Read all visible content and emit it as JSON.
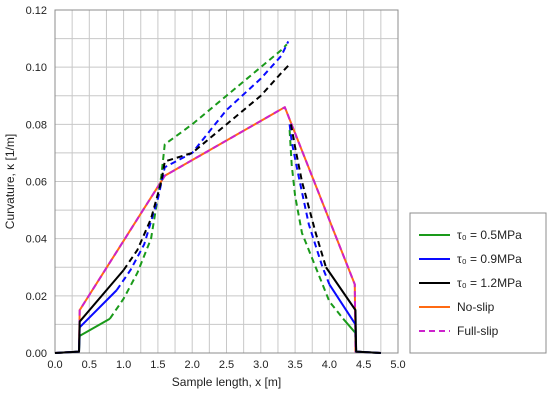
{
  "chart_data": {
    "type": "line",
    "title": "",
    "xlabel": "Sample length, x [m]",
    "ylabel": "Curvature, κ [1/m]",
    "xlim": [
      0.0,
      5.0
    ],
    "ylim": [
      0.0,
      0.12
    ],
    "x_ticks": [
      "0.0",
      "0.5",
      "1.0",
      "1.5",
      "2.0",
      "2.5",
      "3.0",
      "3.5",
      "4.0",
      "4.5",
      "5.0"
    ],
    "y_ticks": [
      "0.00",
      "0.02",
      "0.04",
      "0.06",
      "0.08",
      "0.10",
      "0.12"
    ],
    "grid": true,
    "legend_position": "bottom-right",
    "legend": [
      {
        "label": "τ₀ = 0.5MPa",
        "color": "#1a9a1a",
        "dash": "solid"
      },
      {
        "label": "τ₀ = 0.9MPa",
        "color": "#0a0aff",
        "dash": "solid"
      },
      {
        "label": "τ₀ = 1.2MPa",
        "color": "#000000",
        "dash": "solid"
      },
      {
        "label": "No-slip",
        "color": "#ff6a13",
        "dash": "solid"
      },
      {
        "label": "Full-slip",
        "color": "#cc22cc",
        "dash": "dashed"
      }
    ],
    "series": [
      {
        "name": "τ₀ = 0.5MPa",
        "color": "#1a9a1a",
        "dash": "solid",
        "x": [
          0.0,
          0.35,
          0.36,
          0.8
        ],
        "y": [
          0.0,
          0.0005,
          0.006,
          0.012
        ]
      },
      {
        "name": "τ₀ = 0.5MPa",
        "color": "#1a9a1a",
        "dash": "dashed",
        "x": [
          0.8,
          1.0,
          1.2,
          1.4,
          1.55,
          1.6,
          2.0,
          2.5,
          3.0,
          3.3,
          3.38
        ],
        "y": [
          0.012,
          0.019,
          0.028,
          0.04,
          0.062,
          0.073,
          0.08,
          0.09,
          0.1,
          0.106,
          0.108
        ]
      },
      {
        "name": "τ₀ = 0.5MPa",
        "color": "#1a9a1a",
        "dash": "dashed",
        "x": [
          3.42,
          3.45,
          3.5,
          3.6,
          3.8,
          4.0,
          4.2
        ],
        "y": [
          0.078,
          0.066,
          0.055,
          0.042,
          0.03,
          0.018,
          0.012
        ]
      },
      {
        "name": "τ₀ = 0.5MPa",
        "color": "#1a9a1a",
        "dash": "solid",
        "x": [
          4.2,
          4.38,
          4.39,
          4.75
        ],
        "y": [
          0.012,
          0.007,
          0.0005,
          0.0
        ]
      },
      {
        "name": "τ₀ = 0.9MPa",
        "color": "#0a0aff",
        "dash": "solid",
        "x": [
          0.0,
          0.35,
          0.36,
          0.9
        ],
        "y": [
          0.0,
          0.0005,
          0.009,
          0.022
        ]
      },
      {
        "name": "τ₀ = 0.9MPa",
        "color": "#0a0aff",
        "dash": "dashed",
        "x": [
          0.9,
          1.1,
          1.3,
          1.5,
          1.6,
          2.0,
          2.5,
          3.0,
          3.3,
          3.4
        ],
        "y": [
          0.022,
          0.029,
          0.038,
          0.054,
          0.065,
          0.07,
          0.085,
          0.096,
          0.104,
          0.109
        ]
      },
      {
        "name": "τ₀ = 0.9MPa",
        "color": "#0a0aff",
        "dash": "dashed",
        "x": [
          3.42,
          3.45,
          3.55,
          3.7,
          3.9,
          4.0
        ],
        "y": [
          0.08,
          0.074,
          0.062,
          0.045,
          0.03,
          0.024
        ]
      },
      {
        "name": "τ₀ = 0.9MPa",
        "color": "#0a0aff",
        "dash": "solid",
        "x": [
          4.0,
          4.38,
          4.39,
          4.75
        ],
        "y": [
          0.024,
          0.01,
          0.0005,
          0.0
        ]
      },
      {
        "name": "τ₀ = 1.2MPa",
        "color": "#000000",
        "dash": "solid",
        "x": [
          0.0,
          0.35,
          0.36,
          1.0
        ],
        "y": [
          0.0,
          0.0005,
          0.011,
          0.029
        ]
      },
      {
        "name": "τ₀ = 1.2MPa",
        "color": "#000000",
        "dash": "dashed",
        "x": [
          1.0,
          1.2,
          1.4,
          1.55,
          1.6,
          2.0,
          2.5,
          3.0,
          3.3,
          3.42
        ],
        "y": [
          0.029,
          0.036,
          0.047,
          0.06,
          0.067,
          0.07,
          0.08,
          0.09,
          0.098,
          0.101
        ]
      },
      {
        "name": "τ₀ = 1.2MPa",
        "color": "#000000",
        "dash": "dashed",
        "x": [
          3.44,
          3.5,
          3.6,
          3.8,
          3.95
        ],
        "y": [
          0.08,
          0.072,
          0.06,
          0.042,
          0.03
        ]
      },
      {
        "name": "τ₀ = 1.2MPa",
        "color": "#000000",
        "dash": "solid",
        "x": [
          3.95,
          4.38,
          4.39,
          4.75
        ],
        "y": [
          0.03,
          0.015,
          0.0005,
          0.0
        ]
      },
      {
        "name": "No-slip",
        "color": "#ff6a13",
        "dash": "solid",
        "x": [
          0.0,
          0.35,
          0.36,
          1.6,
          3.35,
          4.37,
          4.38,
          4.75
        ],
        "y": [
          0.0,
          0.0005,
          0.015,
          0.062,
          0.086,
          0.024,
          0.0005,
          0.0
        ]
      },
      {
        "name": "Full-slip",
        "color": "#cc22cc",
        "dash": "dashed",
        "x": [
          0.0,
          0.35,
          0.36,
          1.6,
          3.35,
          4.37,
          4.38,
          4.75
        ],
        "y": [
          0.0,
          0.0005,
          0.015,
          0.062,
          0.086,
          0.024,
          0.0005,
          0.0
        ]
      }
    ]
  }
}
